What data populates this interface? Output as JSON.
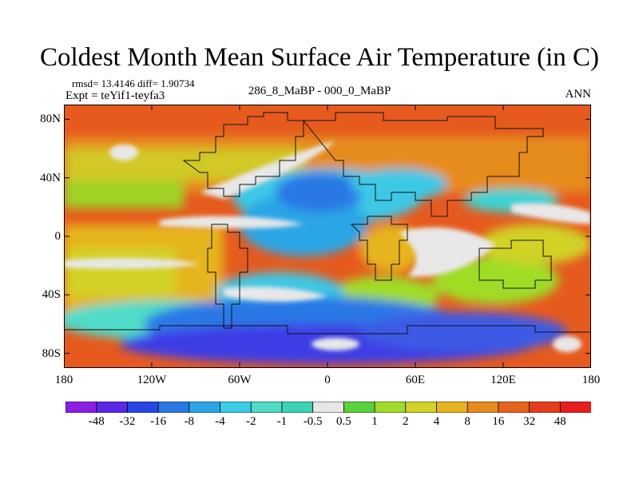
{
  "title": "Coldest Month Mean Surface Air Temperature (in C)",
  "stats_line": "rmsd= 13.4146 diff= 1.90734",
  "experiment_line": "Expt = teYif1-teyfa3",
  "center_label": "286_8_MaBP - 000_0_MaBP",
  "season_label": "ANN",
  "axes": {
    "y_ticks": [
      "80N",
      "40N",
      "0",
      "40S",
      "80S"
    ],
    "y_values": [
      80,
      40,
      0,
      -40,
      -80
    ],
    "x_ticks": [
      "180",
      "120W",
      "60W",
      "0",
      "60E",
      "120E",
      "180"
    ],
    "x_values": [
      -180,
      -120,
      -60,
      0,
      60,
      120,
      180
    ]
  },
  "colorbar": {
    "labels": [
      "-48",
      "-32",
      "-16",
      "-8",
      "-4",
      "-2",
      "-1",
      "-0.5",
      "0.5",
      "1",
      "2",
      "4",
      "8",
      "16",
      "32",
      "48"
    ],
    "colors": [
      "#8c1ee6",
      "#5a28e6",
      "#2846e6",
      "#2a78e6",
      "#2aa6e6",
      "#3ccde6",
      "#50dcc8",
      "#3cd2b4",
      "#e6e6e6",
      "#5ad23c",
      "#a0dc28",
      "#d2d228",
      "#e6b41e",
      "#e68c1e",
      "#e6641e",
      "#e63c1e",
      "#e61e1e"
    ]
  },
  "map": {
    "ocean_color": "#e6641e",
    "ice_color": "#e6e6e6",
    "cold_blue": "#3c8ce6",
    "deep_blue": "#3c3ce6"
  }
}
